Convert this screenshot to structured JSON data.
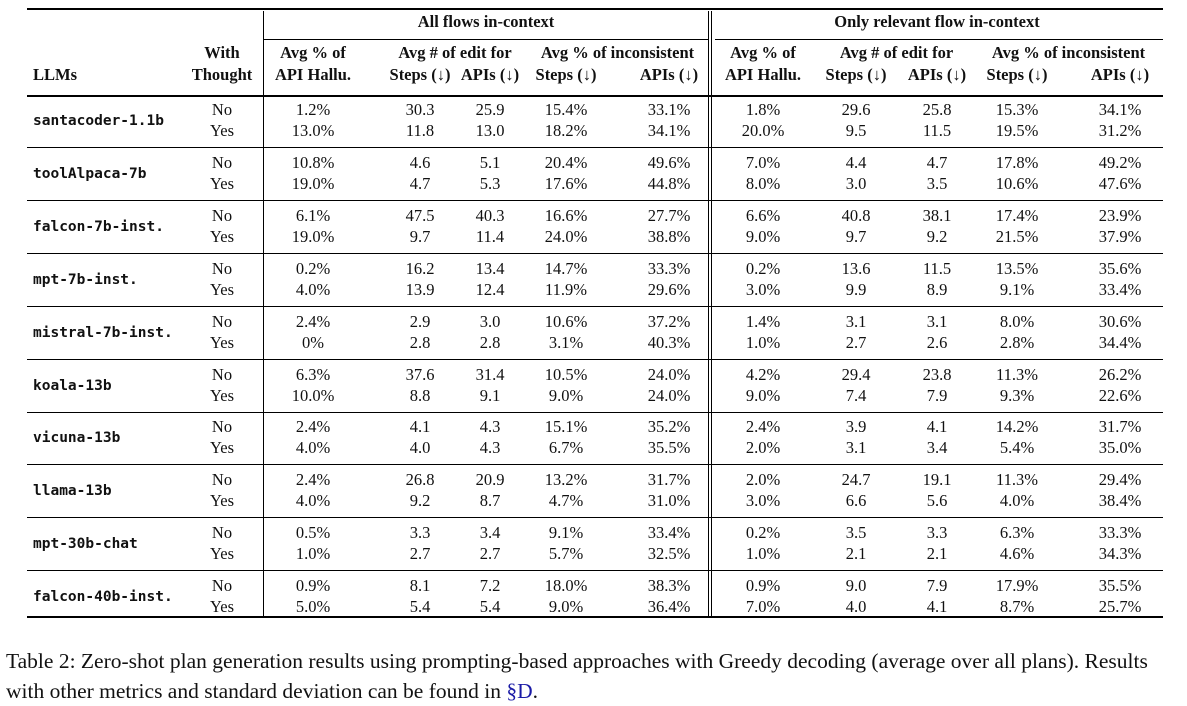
{
  "header": {
    "group_all": "All flows in-context",
    "group_rel": "Only relevant flow in-context",
    "llms": "LLMs",
    "thought_top": "With",
    "thought_bottom": "Thought",
    "hallu_top": "Avg % of",
    "hallu_bottom": "API Hallu.",
    "edit_top": "Avg # of edit for",
    "steps_down": "Steps (↓)",
    "apis_down": "APIs (↓)",
    "incons_top": "Avg % of inconsistent"
  },
  "rows": [
    {
      "model": "santacoder-1.1b",
      "no": [
        "1.2%",
        "30.3",
        "25.9",
        "15.4%",
        "33.1%",
        "1.8%",
        "29.6",
        "25.8",
        "15.3%",
        "34.1%"
      ],
      "yes": [
        "13.0%",
        "11.8",
        "13.0",
        "18.2%",
        "34.1%",
        "20.0%",
        "9.5",
        "11.5",
        "19.5%",
        "31.2%"
      ]
    },
    {
      "model": "toolAlpaca-7b",
      "no": [
        "10.8%",
        "4.6",
        "5.1",
        "20.4%",
        "49.6%",
        "7.0%",
        "4.4",
        "4.7",
        "17.8%",
        "49.2%"
      ],
      "yes": [
        "19.0%",
        "4.7",
        "5.3",
        "17.6%",
        "44.8%",
        "8.0%",
        "3.0",
        "3.5",
        "10.6%",
        "47.6%"
      ]
    },
    {
      "model": "falcon-7b-inst.",
      "no": [
        "6.1%",
        "47.5",
        "40.3",
        "16.6%",
        "27.7%",
        "6.6%",
        "40.8",
        "38.1",
        "17.4%",
        "23.9%"
      ],
      "yes": [
        "19.0%",
        "9.7",
        "11.4",
        "24.0%",
        "38.8%",
        "9.0%",
        "9.7",
        "9.2",
        "21.5%",
        "37.9%"
      ]
    },
    {
      "model": "mpt-7b-inst.",
      "no": [
        "0.2%",
        "16.2",
        "13.4",
        "14.7%",
        "33.3%",
        "0.2%",
        "13.6",
        "11.5",
        "13.5%",
        "35.6%"
      ],
      "yes": [
        "4.0%",
        "13.9",
        "12.4",
        "11.9%",
        "29.6%",
        "3.0%",
        "9.9",
        "8.9",
        "9.1%",
        "33.4%"
      ]
    },
    {
      "model": "mistral-7b-inst.",
      "no": [
        "2.4%",
        "2.9",
        "3.0",
        "10.6%",
        "37.2%",
        "1.4%",
        "3.1",
        "3.1",
        "8.0%",
        "30.6%"
      ],
      "yes": [
        "0%",
        "2.8",
        "2.8",
        "3.1%",
        "40.3%",
        "1.0%",
        "2.7",
        "2.6",
        "2.8%",
        "34.4%"
      ]
    },
    {
      "model": "koala-13b",
      "no": [
        "6.3%",
        "37.6",
        "31.4",
        "10.5%",
        "24.0%",
        "4.2%",
        "29.4",
        "23.8",
        "11.3%",
        "26.2%"
      ],
      "yes": [
        "10.0%",
        "8.8",
        "9.1",
        "9.0%",
        "24.0%",
        "9.0%",
        "7.4",
        "7.9",
        "9.3%",
        "22.6%"
      ]
    },
    {
      "model": "vicuna-13b",
      "no": [
        "2.4%",
        "4.1",
        "4.3",
        "15.1%",
        "35.2%",
        "2.4%",
        "3.9",
        "4.1",
        "14.2%",
        "31.7%"
      ],
      "yes": [
        "4.0%",
        "4.0",
        "4.3",
        "6.7%",
        "35.5%",
        "2.0%",
        "3.1",
        "3.4",
        "5.4%",
        "35.0%"
      ]
    },
    {
      "model": "llama-13b",
      "no": [
        "2.4%",
        "26.8",
        "20.9",
        "13.2%",
        "31.7%",
        "2.0%",
        "24.7",
        "19.1",
        "11.3%",
        "29.4%"
      ],
      "yes": [
        "4.0%",
        "9.2",
        "8.7",
        "4.7%",
        "31.0%",
        "3.0%",
        "6.6",
        "5.6",
        "4.0%",
        "38.4%"
      ]
    },
    {
      "model": "mpt-30b-chat",
      "no": [
        "0.5%",
        "3.3",
        "3.4",
        "9.1%",
        "33.4%",
        "0.2%",
        "3.5",
        "3.3",
        "6.3%",
        "33.3%"
      ],
      "yes": [
        "1.0%",
        "2.7",
        "2.7",
        "5.7%",
        "32.5%",
        "1.0%",
        "2.1",
        "2.1",
        "4.6%",
        "34.3%"
      ]
    },
    {
      "model": "falcon-40b-inst.",
      "no": [
        "0.9%",
        "8.1",
        "7.2",
        "18.0%",
        "38.3%",
        "0.9%",
        "9.0",
        "7.9",
        "17.9%",
        "35.5%"
      ],
      "yes": [
        "5.0%",
        "5.4",
        "5.4",
        "9.0%",
        "36.4%",
        "7.0%",
        "4.0",
        "4.1",
        "8.7%",
        "25.7%"
      ]
    }
  ],
  "thought_labels": {
    "no": "No",
    "yes": "Yes"
  },
  "caption": {
    "text": "Table 2: Zero-shot plan generation results using prompting-based approaches with Greedy decoding (average over all plans). Results with other metrics and standard deviation can be found in ",
    "ref": "§D",
    "end": "."
  }
}
